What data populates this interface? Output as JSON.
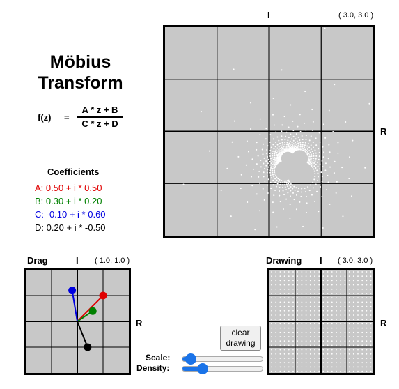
{
  "title_line1": "Möbius",
  "title_line2": "Transform",
  "formula": {
    "lhs": "f(z)",
    "eq": "=",
    "numerator": "A * z + B",
    "denominator": "C * z + D"
  },
  "coefficients": {
    "title": "Coefficients",
    "items": [
      {
        "text": "A: 0.50 + i * 0.50",
        "color": "#e00000"
      },
      {
        "text": "B: 0.30 + i * 0.20",
        "color": "#008000"
      },
      {
        "text": "C: -0.10 + i * 0.60",
        "color": "#0000e0"
      },
      {
        "text": "D: 0.20 + i * -0.50",
        "color": "#000000"
      }
    ]
  },
  "main_plot": {
    "imag_axis": "I",
    "real_axis": "R",
    "range": "( 3.0, 3.0 )"
  },
  "drag_panel": {
    "title": "Drag",
    "imag_axis": "I",
    "real_axis": "R",
    "range": "( 1.0, 1.0 )",
    "range_value": 1.0,
    "points": [
      {
        "name": "A",
        "re": 0.5,
        "im": 0.5,
        "color": "#e00000"
      },
      {
        "name": "B",
        "re": 0.3,
        "im": 0.2,
        "color": "#008000"
      },
      {
        "name": "C",
        "re": -0.1,
        "im": 0.6,
        "color": "#0000e0"
      },
      {
        "name": "D",
        "re": 0.2,
        "im": -0.5,
        "color": "#000000"
      }
    ]
  },
  "drawing_panel": {
    "title": "Drawing",
    "imag_axis": "I",
    "real_axis": "R",
    "range": "( 3.0, 3.0 )"
  },
  "clear_button": {
    "line1": "clear",
    "line2": "drawing"
  },
  "sliders": {
    "scale": {
      "label": "Scale:",
      "value": 0.1
    },
    "density": {
      "label": "Density:",
      "value": 0.25
    }
  },
  "colors": {
    "grid_bg": "#c8c8c8",
    "dot": "#ffffff",
    "slider": "#1a73e8"
  }
}
